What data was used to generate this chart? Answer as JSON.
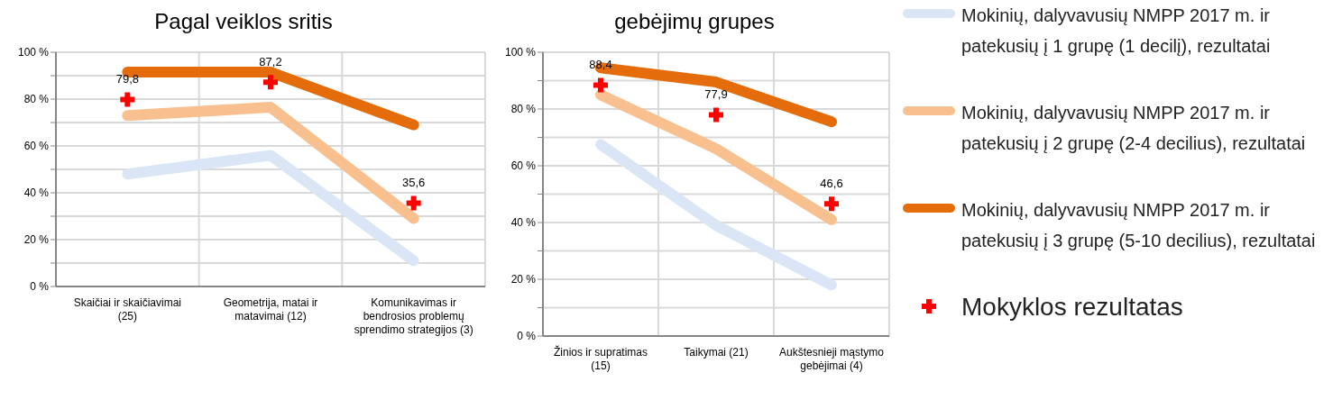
{
  "chart_data": [
    {
      "type": "line",
      "title": "Pagal veiklos sritis",
      "categories": [
        "Skaičiai ir skaičiavimai (25)",
        "Geometrija, matai ir matavimai (12)",
        "Komunikavimas ir bendrosios problemų sprendimo strategijos (3)"
      ],
      "series": [
        {
          "color": "#dae6f6",
          "values": [
            48,
            56,
            11
          ],
          "marker": "none"
        },
        {
          "color": "#f9c08f",
          "values": [
            73,
            76.5,
            29
          ],
          "marker": "none"
        },
        {
          "color": "#e46c0a",
          "values": [
            91.5,
            91.5,
            69
          ],
          "marker": "none"
        },
        {
          "type": "scatter",
          "color": "#ff0000",
          "values": [
            79.8,
            87.2,
            35.6
          ],
          "value_labels": [
            "79,8",
            "87,2",
            "35,6"
          ],
          "marker": "cross"
        }
      ],
      "ylim": [
        0,
        100
      ],
      "yticks": [
        {
          "value": 0,
          "label": "0 %"
        },
        {
          "value": 10,
          "label": null
        },
        {
          "value": 20,
          "label": "20 %"
        },
        {
          "value": 30,
          "label": null
        },
        {
          "value": 40,
          "label": "40 %"
        },
        {
          "value": 50,
          "label": null
        },
        {
          "value": 60,
          "label": "60 %"
        },
        {
          "value": 70,
          "label": null
        },
        {
          "value": 80,
          "label": "80 %"
        },
        {
          "value": 90,
          "label": null
        },
        {
          "value": 100,
          "label": "100 %"
        }
      ],
      "grid": true
    },
    {
      "type": "line",
      "title": "gebėjimų grupes",
      "categories": [
        "Žinios ir supratimas (15)",
        "Taikymai (21)",
        "Aukštesnieji mąstymo gebėjimai (4)"
      ],
      "series": [
        {
          "name": "Mokinių, dalyvavusių NMPP 2017 m. ir patekusių į 1 grupę (1 decilį), rezultatai",
          "color": "#dae6f6",
          "values": [
            67.5,
            39,
            18
          ],
          "marker": "none"
        },
        {
          "name": "Mokinių, dalyvavusių NMPP 2017 m. ir patekusių į 2 grupę (2-4 decilius), rezultatai",
          "color": "#f9c08f",
          "values": [
            85,
            66,
            41
          ],
          "marker": "none"
        },
        {
          "name": "Mokinių, dalyvavusių NMPP 2017 m. ir patekusių į 3 grupę (5-10 decilius), rezultatai",
          "color": "#e46c0a",
          "values": [
            94.5,
            89.5,
            75.5
          ],
          "marker": "none"
        },
        {
          "name": "Mokyklos rezultatas",
          "type": "scatter",
          "color": "#ff0000",
          "values": [
            88.4,
            77.9,
            46.6
          ],
          "value_labels": [
            "88,4",
            "77,9",
            "46,6"
          ],
          "marker": "cross"
        }
      ],
      "ylim": [
        0,
        100
      ],
      "yticks": [
        {
          "value": 0,
          "label": "0 %"
        },
        {
          "value": 10,
          "label": null
        },
        {
          "value": 20,
          "label": "20 %"
        },
        {
          "value": 30,
          "label": null
        },
        {
          "value": 40,
          "label": "40 %"
        },
        {
          "value": 50,
          "label": null
        },
        {
          "value": 60,
          "label": "60 %"
        },
        {
          "value": 70,
          "label": null
        },
        {
          "value": 80,
          "label": "80 %"
        },
        {
          "value": 90,
          "label": null
        },
        {
          "value": 100,
          "label": "100 %"
        }
      ],
      "grid": true,
      "legend": "right"
    }
  ]
}
